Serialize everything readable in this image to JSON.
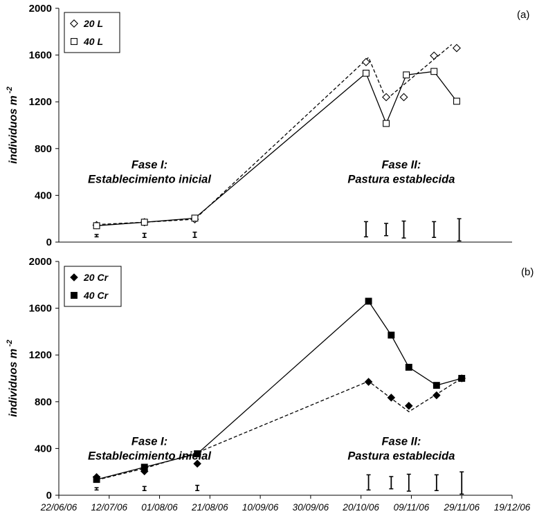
{
  "chart_data": [
    {
      "type": "line",
      "panel_label": "(a)",
      "ylabel": "individuos m",
      "ylabel_sup": "-2",
      "ylim": [
        0,
        2000
      ],
      "yticks": [
        0,
        400,
        800,
        1200,
        1600,
        2000
      ],
      "xlabel": "",
      "legend": "top-left",
      "series": [
        {
          "name": "20 L",
          "marker": "diamond-open",
          "line": "dashed",
          "points": [
            {
              "x": "2006-07-07",
              "y": 145
            },
            {
              "x": "2006-07-26",
              "y": 170
            },
            {
              "x": "2006-08-15",
              "y": 195
            },
            {
              "x": "2006-10-22",
              "y": 1540
            },
            {
              "x": "2006-10-30",
              "y": 1240
            },
            {
              "x": "2006-11-06",
              "y": 1240
            },
            {
              "x": "2006-11-18",
              "y": 1595
            },
            {
              "x": "2006-11-27",
              "y": 1660
            }
          ],
          "line_points": [
            {
              "x": "2006-07-07",
              "y": 150
            },
            {
              "x": "2006-07-26",
              "y": 170
            },
            {
              "x": "2006-08-15",
              "y": 195
            },
            {
              "x": "2006-10-23",
              "y": 1580
            },
            {
              "x": "2006-10-30",
              "y": 1220
            },
            {
              "x": "2006-11-25",
              "y": 1690
            }
          ]
        },
        {
          "name": "40 L",
          "marker": "square-open",
          "line": "solid",
          "points": [
            {
              "x": "2006-07-07",
              "y": 140
            },
            {
              "x": "2006-07-26",
              "y": 170
            },
            {
              "x": "2006-08-15",
              "y": 205
            },
            {
              "x": "2006-10-22",
              "y": 1445
            },
            {
              "x": "2006-10-30",
              "y": 1015
            },
            {
              "x": "2006-11-07",
              "y": 1430
            },
            {
              "x": "2006-11-18",
              "y": 1460
            },
            {
              "x": "2006-11-27",
              "y": 1205
            }
          ]
        }
      ],
      "error_bars": [
        {
          "x": "2006-07-07",
          "low": 45,
          "high": 65
        },
        {
          "x": "2006-07-26",
          "low": 40,
          "high": 75
        },
        {
          "x": "2006-08-15",
          "low": 40,
          "high": 85
        },
        {
          "x": "2006-10-22",
          "low": 45,
          "high": 175
        },
        {
          "x": "2006-10-30",
          "low": 55,
          "high": 160
        },
        {
          "x": "2006-11-06",
          "low": 35,
          "high": 180
        },
        {
          "x": "2006-11-18",
          "low": 40,
          "high": 175
        },
        {
          "x": "2006-11-28",
          "low": 10,
          "high": 200
        }
      ],
      "annotations": [
        {
          "lines": [
            "Fase I:",
            "Establecimiento inicial"
          ],
          "anchor_x": "2006-07-28",
          "y": 630
        },
        {
          "lines": [
            "Fase II:",
            "Pastura establecida"
          ],
          "anchor_x": "2006-11-05",
          "y": 630
        }
      ]
    },
    {
      "type": "line",
      "panel_label": "(b)",
      "ylabel": "individuos m",
      "ylabel_sup": "-2",
      "ylim": [
        0,
        2000
      ],
      "yticks": [
        0,
        400,
        800,
        1200,
        1600,
        2000
      ],
      "xlabel": "",
      "xlim": [
        "2006-06-22",
        "2006-12-19"
      ],
      "xticks": [
        "22/06/06",
        "12/07/06",
        "01/08/06",
        "21/08/06",
        "10/09/06",
        "30/09/06",
        "20/10/06",
        "09/11/06",
        "29/11/06",
        "19/12/06"
      ],
      "legend": "top-left",
      "series": [
        {
          "name": "20 Cr",
          "marker": "diamond-filled",
          "line": "dashed",
          "points": [
            {
              "x": "2006-07-07",
              "y": 155
            },
            {
              "x": "2006-07-26",
              "y": 205
            },
            {
              "x": "2006-08-16",
              "y": 270
            },
            {
              "x": "2006-10-23",
              "y": 970
            },
            {
              "x": "2006-11-01",
              "y": 835
            },
            {
              "x": "2006-11-08",
              "y": 765
            },
            {
              "x": "2006-11-19",
              "y": 855
            },
            {
              "x": "2006-11-29",
              "y": 1000
            }
          ],
          "line_points": [
            {
              "x": "2006-07-07",
              "y": 130
            },
            {
              "x": "2006-07-26",
              "y": 230
            },
            {
              "x": "2006-08-16",
              "y": 365
            },
            {
              "x": "2006-10-23",
              "y": 975
            },
            {
              "x": "2006-11-08",
              "y": 715
            },
            {
              "x": "2006-11-29",
              "y": 1000
            }
          ]
        },
        {
          "name": "40 Cr",
          "marker": "square-filled",
          "line": "solid",
          "points": [
            {
              "x": "2006-07-07",
              "y": 135
            },
            {
              "x": "2006-07-26",
              "y": 240
            },
            {
              "x": "2006-08-16",
              "y": 355
            },
            {
              "x": "2006-10-23",
              "y": 1660
            },
            {
              "x": "2006-11-01",
              "y": 1370
            },
            {
              "x": "2006-11-08",
              "y": 1095
            },
            {
              "x": "2006-11-19",
              "y": 940
            },
            {
              "x": "2006-11-29",
              "y": 1000
            }
          ]
        }
      ],
      "error_bars": [
        {
          "x": "2006-07-07",
          "low": 45,
          "high": 65
        },
        {
          "x": "2006-07-26",
          "low": 40,
          "high": 75
        },
        {
          "x": "2006-08-16",
          "low": 40,
          "high": 85
        },
        {
          "x": "2006-10-23",
          "low": 45,
          "high": 175
        },
        {
          "x": "2006-11-01",
          "low": 55,
          "high": 160
        },
        {
          "x": "2006-11-08",
          "low": 35,
          "high": 180
        },
        {
          "x": "2006-11-19",
          "low": 40,
          "high": 175
        },
        {
          "x": "2006-11-29",
          "low": 10,
          "high": 200
        }
      ],
      "annotations": [
        {
          "lines": [
            "Fase I:",
            "Establecimiento inicial"
          ],
          "anchor_x": "2006-07-28",
          "y": 430
        },
        {
          "lines": [
            "Fase II:",
            "Pastura establecida"
          ],
          "anchor_x": "2006-11-05",
          "y": 430
        }
      ]
    }
  ]
}
